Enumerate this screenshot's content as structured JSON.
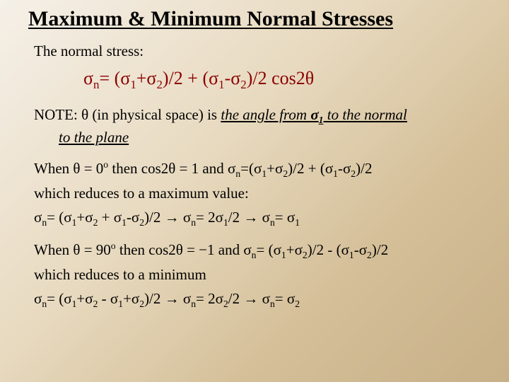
{
  "title": "Maximum & Minimum Normal Stresses",
  "intro": "The normal stress:",
  "main_equation": {
    "lhs": "σ",
    "lhs_sub": "n",
    "part1_open": "= (σ",
    "part1_s1": "1",
    "part1_plus": "+σ",
    "part1_s2": "2",
    "part1_close": ")/2 + (σ",
    "part2_s1": "1",
    "part2_minus": "-σ",
    "part2_s2": "2",
    "part2_close": ")/2 cos2θ"
  },
  "note": {
    "label": "NOTE:",
    "theta": " θ ",
    "phys": "(in physical space) ",
    "angle1": "is ",
    "angle2": "the angle from ",
    "sigma": "σ",
    "sigma_sub": "1",
    "angle3": " to the normal",
    "line2": "to the plane"
  },
  "case0": {
    "when": "When θ = 0",
    "deg": "o",
    "then": "  then cos2θ = 1  and  σ",
    "n": "n",
    "eq1a": "=(σ",
    "s1": "1",
    "plus": "+σ",
    "s2": "2",
    "eq1b": ")/2 + (σ",
    "s1b": "1",
    "minus": "-σ",
    "s2b": "2",
    "eq1c": ")/2",
    "reduce": "which reduces to a maximum value:",
    "final_pre": " σ",
    "fn": "n",
    "f1": "= (σ",
    "fs1": "1",
    "fplus": "+σ",
    "fs2": "2",
    "fplus2": " + σ",
    "fs1b": "1",
    "fminus": "-σ",
    "fs2b": "2",
    "f2": ")/2 ",
    "arrow1": "→",
    "f3": " σ",
    "fn2": "n",
    "f4": "= 2σ",
    "fs1c": "1",
    "f5": "/2 ",
    "arrow2": "→",
    "f6": " σ",
    "fn3": "n",
    "f7": "= σ",
    "fs1d": "1"
  },
  "case90": {
    "when": "When θ = 90",
    "deg": "o",
    "then": "  then cos2θ = −1  and  σ",
    "n": "n",
    "eq1a": "= (σ",
    "s1": "1",
    "plus": "+σ",
    "s2": "2",
    "eq1b": ")/2 - (σ",
    "s1b": "1",
    "minus": "-σ",
    "s2b": "2",
    "eq1c": ")/2",
    "reduce": "which reduces to a minimum",
    "final_pre": " σ",
    "fn": "n",
    "f1": "= (σ",
    "fs1": "1",
    "fplus": "+σ",
    "fs2": "2",
    "fminus1": " - σ",
    "fs1b": "1",
    "fplus2": "+σ",
    "fs2b": "2",
    "f2": ")/2 ",
    "arrow1": "→",
    "f3": " σ",
    "fn2": "n",
    "f4": "= 2σ",
    "fs2c": "2",
    "f5": "/2 ",
    "arrow2": "→",
    "f6": " σ",
    "fn3": "n",
    "f7": "= σ",
    "fs2d": "2"
  },
  "colors": {
    "title_underline": "#000000",
    "equation": "#8b0000",
    "text": "#000000"
  }
}
